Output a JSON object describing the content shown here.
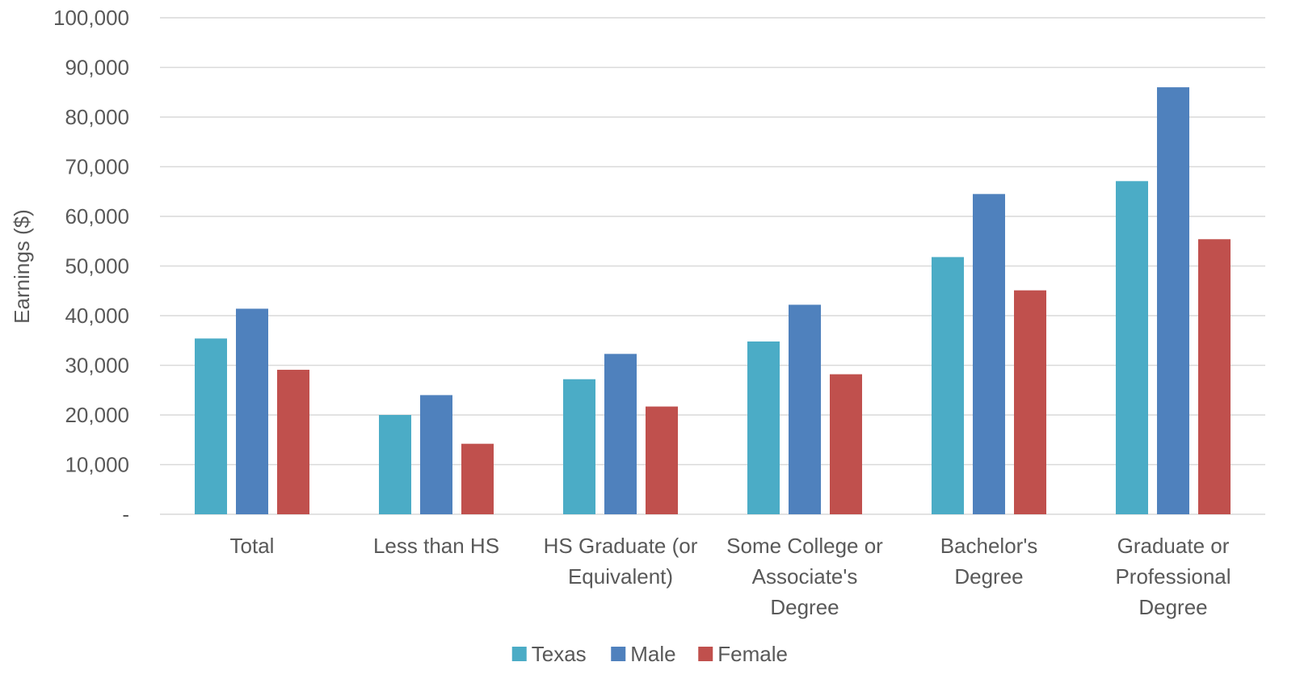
{
  "chart_data": {
    "type": "bar",
    "title": "",
    "xlabel": "",
    "ylabel": "Earnings ($)",
    "ylim": [
      0,
      100000
    ],
    "y_ticks": [
      "-",
      "10,000",
      "20,000",
      "30,000",
      "40,000",
      "50,000",
      "60,000",
      "70,000",
      "80,000",
      "90,000",
      "100,000"
    ],
    "grid": true,
    "legend_position": "bottom",
    "categories": [
      [
        "Total"
      ],
      [
        "Less than HS"
      ],
      [
        "HS Graduate (or",
        "Equivalent)"
      ],
      [
        "Some College or",
        "Associate's",
        "Degree"
      ],
      [
        "Bachelor's",
        "Degree"
      ],
      [
        "Graduate or",
        "Professional",
        "Degree"
      ]
    ],
    "series": [
      {
        "name": "Texas",
        "color": "#4bacc6",
        "values": [
          35400,
          20000,
          27200,
          34800,
          51800,
          67100
        ]
      },
      {
        "name": "Male",
        "color": "#4f81bd",
        "values": [
          41400,
          24000,
          32300,
          42200,
          64500,
          86000
        ]
      },
      {
        "name": "Female",
        "color": "#c0504d",
        "values": [
          29100,
          14200,
          21700,
          28200,
          45100,
          55400
        ]
      }
    ]
  }
}
